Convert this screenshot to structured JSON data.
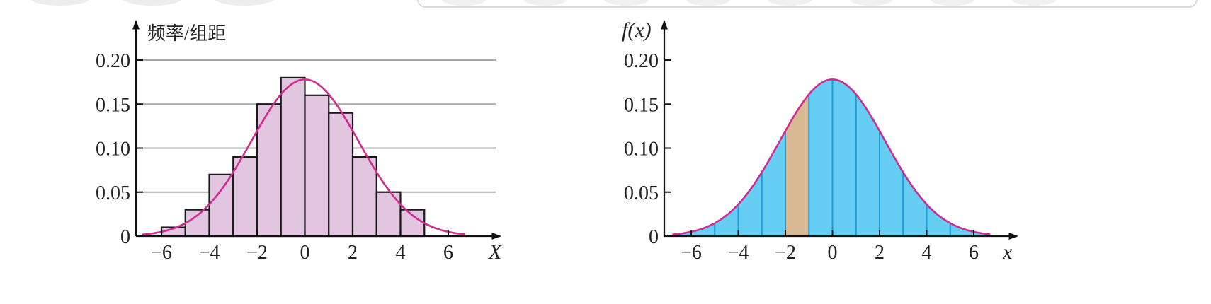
{
  "colors": {
    "axis": "#111111",
    "grid": "#a9a9a9",
    "bar_fill": "#e2c5de",
    "bar_stroke": "#1a1a1a",
    "curve": "#d02b8e",
    "area_fill": "#66cdf3",
    "area_divider": "#1f9bd7",
    "highlight_fill": "#d9b894"
  },
  "chart_data": [
    {
      "type": "bar",
      "title": "",
      "ylabel": "频率/组距",
      "xlabel": "X",
      "ylim": [
        0,
        0.2
      ],
      "xlim": [
        -7,
        8
      ],
      "grid": true,
      "xticks": [
        -6,
        -4,
        -2,
        0,
        2,
        4,
        6
      ],
      "xtick_labels": [
        "−6",
        "−4",
        "−2",
        "0",
        "2",
        "4",
        "6"
      ],
      "yticks": [
        0,
        0.05,
        0.1,
        0.15,
        0.2
      ],
      "ytick_labels": [
        "0",
        "0.05",
        "0.10",
        "0.15",
        "0.20"
      ],
      "bins": [
        {
          "x0": -6,
          "x1": -5,
          "value": 0.01
        },
        {
          "x0": -5,
          "x1": -4,
          "value": 0.03
        },
        {
          "x0": -4,
          "x1": -3,
          "value": 0.07
        },
        {
          "x0": -3,
          "x1": -2,
          "value": 0.09
        },
        {
          "x0": -2,
          "x1": -1,
          "value": 0.15
        },
        {
          "x0": -1,
          "x1": 0,
          "value": 0.18
        },
        {
          "x0": 0,
          "x1": 1,
          "value": 0.16
        },
        {
          "x0": 1,
          "x1": 2,
          "value": 0.14
        },
        {
          "x0": 2,
          "x1": 3,
          "value": 0.09
        },
        {
          "x0": 3,
          "x1": 4,
          "value": 0.05
        },
        {
          "x0": 4,
          "x1": 5,
          "value": 0.03
        }
      ],
      "curve": {
        "mean": 0,
        "peak": 0.178,
        "sd": 2.24,
        "x_from": -6.8,
        "x_to": 6.7
      }
    },
    {
      "type": "area",
      "title": "",
      "ylabel": "f(x)",
      "xlabel": "x",
      "ylim": [
        0,
        0.2
      ],
      "xlim": [
        -7,
        8
      ],
      "grid": false,
      "xticks": [
        -6,
        -4,
        -2,
        0,
        2,
        4,
        6
      ],
      "xtick_labels": [
        "−6",
        "−4",
        "−2",
        "0",
        "2",
        "4",
        "6"
      ],
      "yticks": [
        0,
        0.05,
        0.1,
        0.15,
        0.2
      ],
      "ytick_labels": [
        "0",
        "0.05",
        "0.10",
        "0.15",
        "0.20"
      ],
      "dividers": [
        -6,
        -5,
        -4,
        -3,
        -2,
        -1,
        0,
        1,
        2,
        3,
        4,
        5,
        6
      ],
      "highlight": [
        -2,
        -1
      ],
      "curve": {
        "mean": 0,
        "peak": 0.178,
        "sd": 2.24,
        "x_from": -6.8,
        "x_to": 6.7
      }
    }
  ]
}
